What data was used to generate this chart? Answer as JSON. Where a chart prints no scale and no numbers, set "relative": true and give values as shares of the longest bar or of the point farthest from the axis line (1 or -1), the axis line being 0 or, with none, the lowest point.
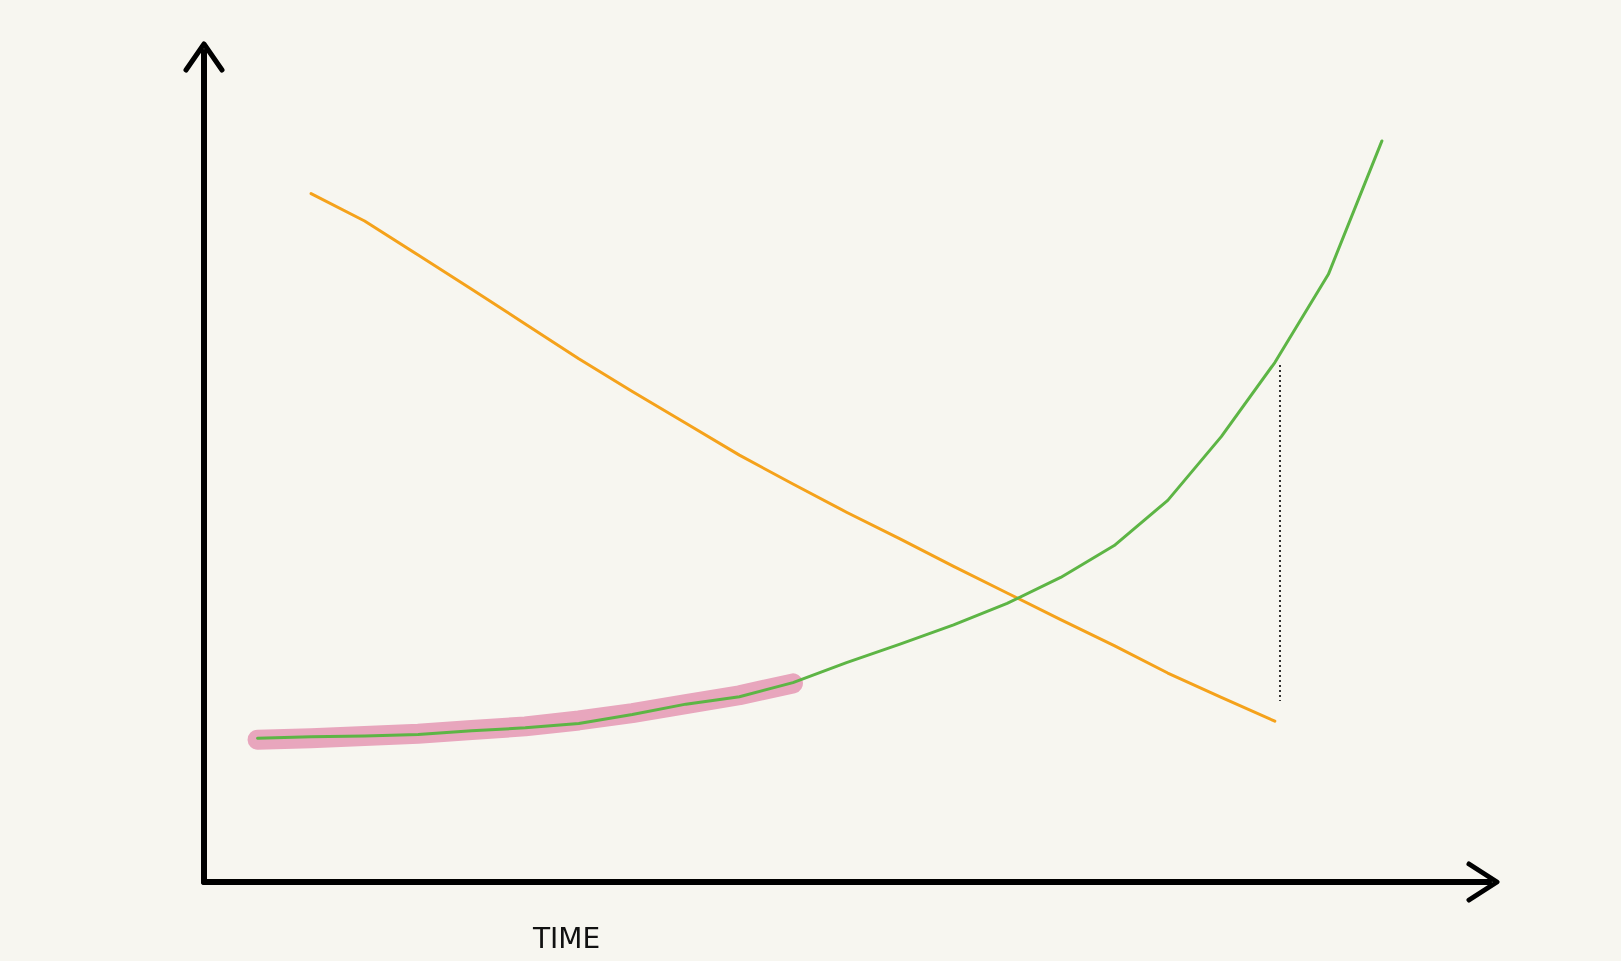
{
  "chart_data": {
    "type": "line",
    "relative": true,
    "xlabel": "TIME",
    "marker": "none",
    "categories": [
      null,
      null,
      null,
      null,
      null,
      null,
      null,
      null,
      null,
      null,
      null,
      null,
      null,
      null,
      null,
      null,
      null,
      null,
      null,
      null,
      null,
      null,
      null,
      null,
      null
    ],
    "series": [
      {
        "color": "#f5a21b",
        "values": [
          null,
          null,
          0.929,
          0.892,
          0.846,
          0.8,
          0.753,
          0.706,
          0.662,
          0.619,
          0.576,
          0.537,
          0.499,
          0.463,
          0.426,
          0.39,
          0.354,
          0.319,
          0.282,
          0.249,
          0.217,
          null,
          null,
          null,
          null
        ]
      },
      {
        "color": "#e8a6bd",
        "values": [
          null,
          0.192,
          0.194,
          0.197,
          0.2,
          0.205,
          0.21,
          0.218,
          0.228,
          0.24,
          0.252,
          0.268,
          null,
          null,
          null,
          null,
          null,
          null,
          null,
          null,
          null,
          null,
          null,
          null,
          null
        ]
      },
      {
        "color": "#5db545",
        "values": [
          null,
          0.194,
          0.196,
          0.197,
          0.199,
          0.204,
          0.208,
          0.214,
          0.226,
          0.24,
          0.25,
          0.269,
          0.296,
          0.321,
          0.347,
          0.376,
          0.411,
          0.454,
          0.515,
          0.601,
          0.701,
          0.82,
          1,
          null,
          null
        ]
      }
    ]
  }
}
